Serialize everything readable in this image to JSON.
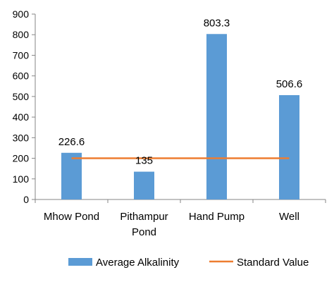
{
  "chart_data": {
    "type": "bar",
    "categories": [
      [
        "Mhow Pond"
      ],
      [
        "Pithampur",
        "Pond"
      ],
      [
        "Hand Pump"
      ],
      [
        "Well"
      ]
    ],
    "series": [
      {
        "name": "Average Alkalinity",
        "type": "bar",
        "values": [
          226.6,
          135,
          803.3,
          506.6
        ],
        "data_labels": [
          "226.6",
          "135",
          "803.3",
          "506.6"
        ],
        "color": "#5b9bd5"
      },
      {
        "name": "Standard Value",
        "type": "line",
        "value": 200,
        "color": "#ed7d31"
      }
    ],
    "ylim": [
      0,
      900
    ],
    "yticks": [
      0,
      100,
      200,
      300,
      400,
      500,
      600,
      700,
      800,
      900
    ],
    "grid": false,
    "legend": "bottom"
  }
}
